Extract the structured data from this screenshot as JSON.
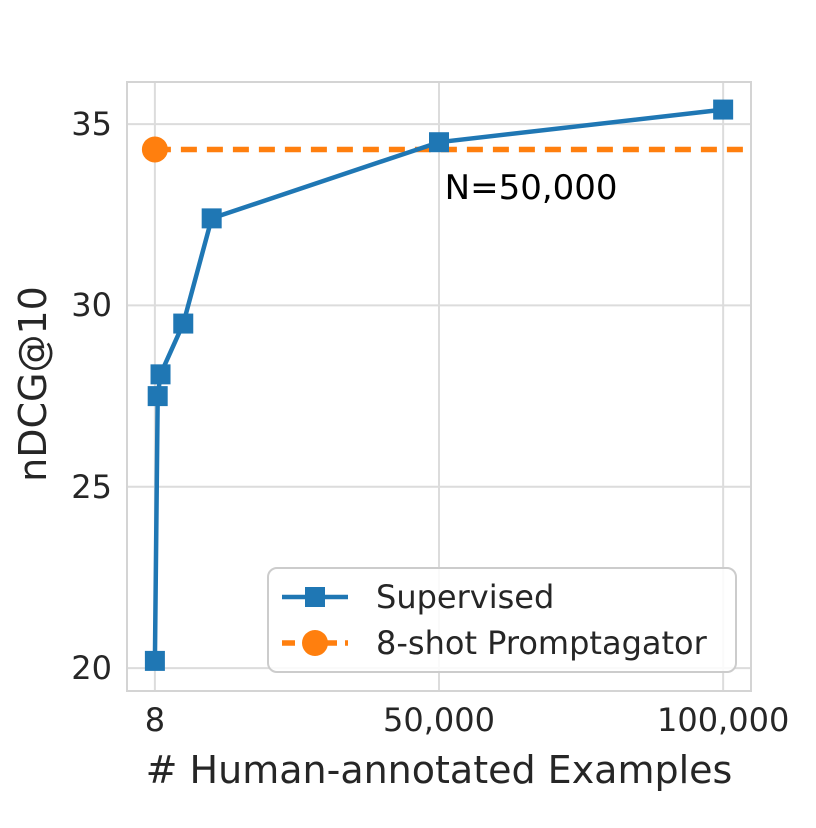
{
  "figure": {
    "background": "#ffffff",
    "text_color": "#262626"
  },
  "chart_data": {
    "type": "line",
    "title": "",
    "xlabel": "# Human-annotated Examples",
    "ylabel": "nDCG@10",
    "xscale": "linear",
    "xlim": [
      -4900,
      104900
    ],
    "ylim": [
      19.37,
      36.16
    ],
    "grid": true,
    "grid_color": "#dcdcdc",
    "spine_color": "#d4d4d4",
    "xticks": [
      {
        "value": 8,
        "label": "8"
      },
      {
        "value": 50000,
        "label": "50,000"
      },
      {
        "value": 100000,
        "label": "100,000"
      }
    ],
    "yticks": [
      {
        "value": 20,
        "label": "20"
      },
      {
        "value": 25,
        "label": "25"
      },
      {
        "value": 30,
        "label": "30"
      },
      {
        "value": 35,
        "label": "35"
      }
    ],
    "series": [
      {
        "name": "Supervised",
        "color": "#1f77b4",
        "marker": "square",
        "line_style": "solid",
        "points": [
          [
            8,
            20.2
          ],
          [
            500,
            27.5
          ],
          [
            1000,
            28.1
          ],
          [
            5000,
            29.5
          ],
          [
            10000,
            32.4
          ],
          [
            50000,
            34.5
          ],
          [
            100000,
            35.4
          ]
        ]
      },
      {
        "name": "8-shot Promptagator",
        "color": "#ff7f0e",
        "marker": "circle",
        "line_style": "dashed",
        "hline": 34.3,
        "points": [
          [
            8,
            34.3
          ]
        ]
      }
    ],
    "annotation": {
      "text": "N=50,000",
      "x": 51000,
      "y": 33.8
    },
    "legend": {
      "location": "lower center-right",
      "entries": [
        "Supervised",
        "8-shot Promptagator"
      ]
    }
  }
}
